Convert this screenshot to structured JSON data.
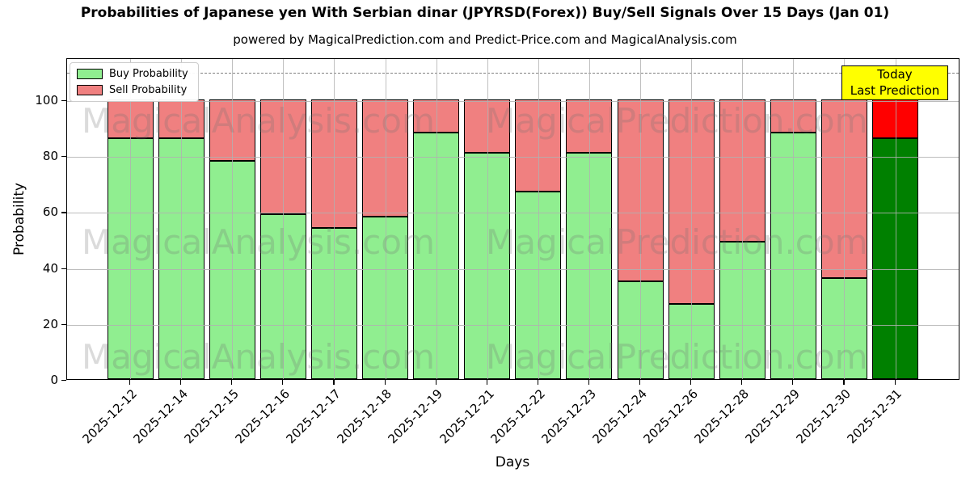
{
  "header": {
    "title": "Probabilities of Japanese yen With Serbian dinar (JPYRSD(Forex)) Buy/Sell Signals Over 15 Days (Jan 01)",
    "subtitle": "powered by MagicalPrediction.com and Predict-Price.com and MagicalAnalysis.com"
  },
  "legend": {
    "items": [
      {
        "label": "Buy Probability",
        "color": "#90EE90"
      },
      {
        "label": "Sell Probability",
        "color": "#F08080"
      }
    ]
  },
  "annotation": {
    "line1": "Today",
    "line2": "Last Prediction",
    "bg_color": "#FFFF00",
    "border_color": "#000000"
  },
  "watermarks": {
    "left": "MagicalAnalysis.com",
    "right": "MagicalPrediction.com"
  },
  "chart_data": {
    "type": "bar",
    "stacked": true,
    "title": "Probabilities of Japanese yen With Serbian dinar (JPYRSD(Forex)) Buy/Sell Signals Over 15 Days (Jan 01)",
    "xlabel": "Days",
    "ylabel": "Probability",
    "ylim": [
      0,
      115
    ],
    "yticks": [
      0,
      20,
      40,
      60,
      80,
      100
    ],
    "dashed_line_y": 110,
    "grid": true,
    "legend_position": "upper-left",
    "categories": [
      "2025-12-12",
      "2025-12-14",
      "2025-12-15",
      "2025-12-16",
      "2025-12-17",
      "2025-12-18",
      "2025-12-19",
      "2025-12-21",
      "2025-12-22",
      "2025-12-23",
      "2025-12-24",
      "2025-12-26",
      "2025-12-28",
      "2025-12-29",
      "2025-12-30",
      "2025-12-31"
    ],
    "series": [
      {
        "name": "Buy Probability",
        "color": "#90EE90",
        "last_bar_color": "#008000",
        "values": [
          86,
          86,
          78,
          59,
          54,
          58,
          88,
          81,
          67,
          81,
          35,
          27,
          49,
          88,
          36,
          86
        ]
      },
      {
        "name": "Sell Probability",
        "color": "#F08080",
        "last_bar_color": "#FF0000",
        "values": [
          14,
          14,
          22,
          41,
          46,
          42,
          12,
          19,
          33,
          19,
          65,
          73,
          51,
          12,
          64,
          14
        ]
      }
    ]
  }
}
